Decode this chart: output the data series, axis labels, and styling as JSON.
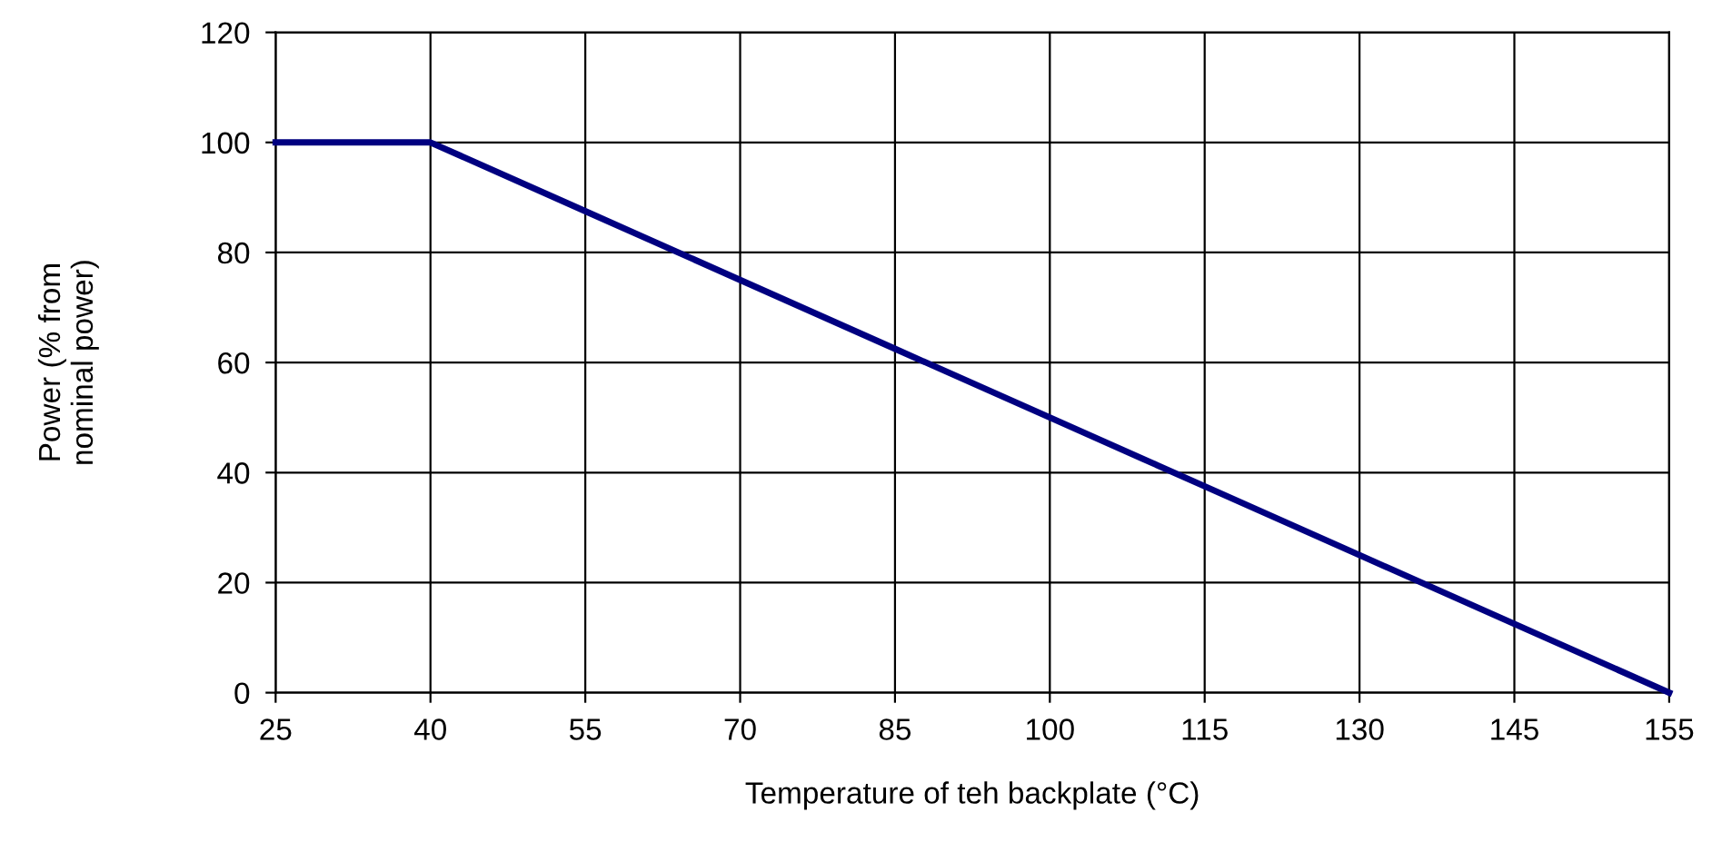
{
  "chart_data": {
    "type": "line",
    "xlabel": "Temperature of teh backplate (°C)",
    "ylabel": "Power (% from\nnominal power)",
    "categories": [
      "25",
      "40",
      "55",
      "70",
      "85",
      "100",
      "115",
      "130",
      "145",
      "155"
    ],
    "series": [
      {
        "color": "#000080",
        "values": [
          100,
          100,
          87.5,
          75,
          62.5,
          50,
          37.5,
          25,
          12.5,
          0
        ]
      }
    ],
    "ylim": [
      0,
      120
    ],
    "yticks": [
      0,
      20,
      40,
      60,
      80,
      100,
      120
    ],
    "grid": true,
    "marker": "none",
    "line_style": "solid"
  }
}
